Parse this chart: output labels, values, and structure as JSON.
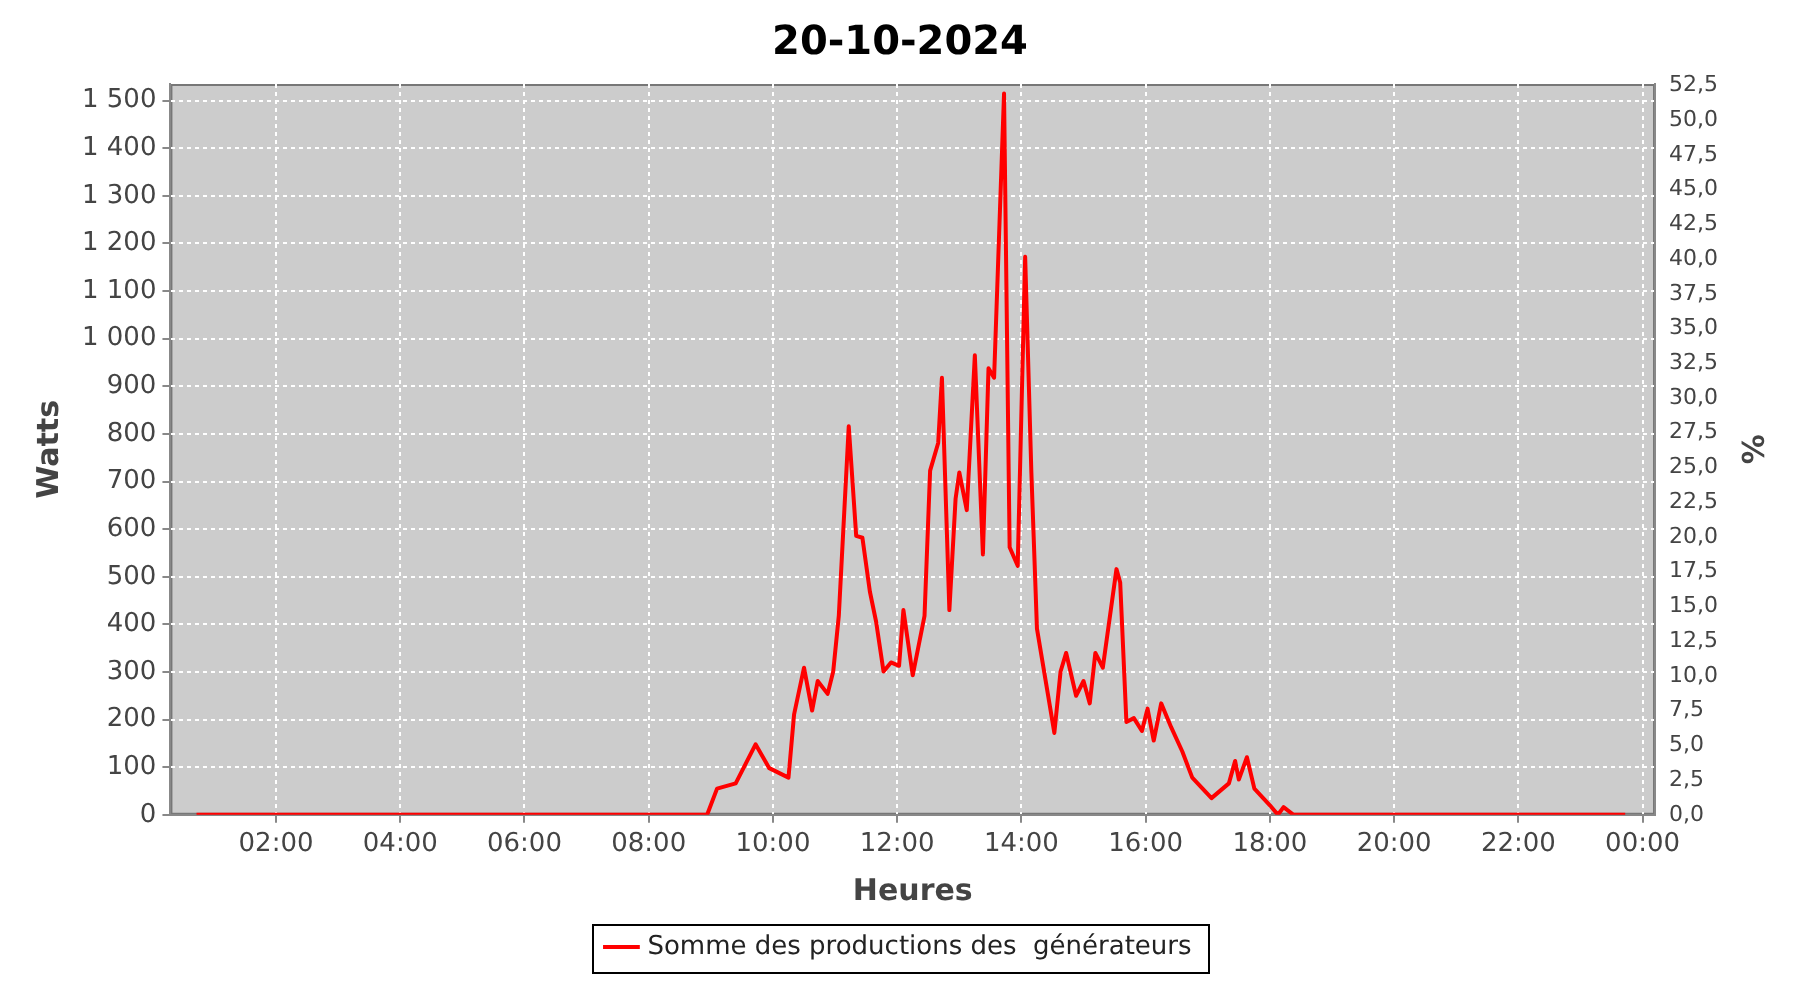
{
  "chart_data": {
    "type": "line",
    "title": "20-10-2024",
    "xlabel": "Heures",
    "ylabel": "Watts",
    "y2label": "%",
    "xlim": [
      0.3,
      24.2
    ],
    "ylim": [
      0,
      1535
    ],
    "y2lim": [
      0,
      52.6
    ],
    "xticks": [
      {
        "value": 2,
        "label": "02:00"
      },
      {
        "value": 4,
        "label": "04:00"
      },
      {
        "value": 6,
        "label": "06:00"
      },
      {
        "value": 8,
        "label": "08:00"
      },
      {
        "value": 10,
        "label": "10:00"
      },
      {
        "value": 12,
        "label": "12:00"
      },
      {
        "value": 14,
        "label": "14:00"
      },
      {
        "value": 16,
        "label": "16:00"
      },
      {
        "value": 18,
        "label": "18:00"
      },
      {
        "value": 20,
        "label": "20:00"
      },
      {
        "value": 22,
        "label": "22:00"
      },
      {
        "value": 24,
        "label": "00:00"
      }
    ],
    "yticks": [
      0,
      100,
      200,
      300,
      400,
      500,
      600,
      700,
      800,
      900,
      {
        "value": 1000,
        "label": "1 000"
      },
      {
        "value": 1100,
        "label": "1 100"
      },
      {
        "value": 1200,
        "label": "1 200"
      },
      {
        "value": 1300,
        "label": "1 300"
      },
      {
        "value": 1400,
        "label": "1 400"
      },
      {
        "value": 1500,
        "label": "1 500"
      }
    ],
    "y2ticks": [
      {
        "value": 0,
        "label": "0,0"
      },
      {
        "value": 2.5,
        "label": "2,5"
      },
      {
        "value": 5,
        "label": "5,0"
      },
      {
        "value": 7.5,
        "label": "7,5"
      },
      {
        "value": 10,
        "label": "10,0"
      },
      {
        "value": 12.5,
        "label": "12,5"
      },
      {
        "value": 15,
        "label": "15,0"
      },
      {
        "value": 17.5,
        "label": "17,5"
      },
      {
        "value": 20,
        "label": "20,0"
      },
      {
        "value": 22.5,
        "label": "22,5"
      },
      {
        "value": 25,
        "label": "25,0"
      },
      {
        "value": 27.5,
        "label": "27,5"
      },
      {
        "value": 30,
        "label": "30,0"
      },
      {
        "value": 32.5,
        "label": "32,5"
      },
      {
        "value": 35,
        "label": "35,0"
      },
      {
        "value": 37.5,
        "label": "37,5"
      },
      {
        "value": 40,
        "label": "40,0"
      },
      {
        "value": 42.5,
        "label": "42,5"
      },
      {
        "value": 45,
        "label": "45,0"
      },
      {
        "value": 47.5,
        "label": "47,5"
      },
      {
        "value": 50,
        "label": "50,0"
      },
      {
        "value": 52.5,
        "label": "52,5"
      }
    ],
    "grid": true,
    "legend": "bottom",
    "marker": "none",
    "line_style": "solid",
    "series": [
      {
        "name": "Somme des productions des  générateurs",
        "color": "#ff0000",
        "x": [
          0.72,
          4,
          8,
          8.94,
          9.1,
          9.4,
          9.72,
          9.94,
          10.25,
          10.34,
          10.5,
          10.63,
          10.72,
          10.88,
          10.97,
          11.06,
          11.22,
          11.34,
          11.44,
          11.56,
          11.66,
          11.78,
          11.9,
          12.03,
          12.1,
          12.25,
          12.44,
          12.53,
          12.66,
          12.72,
          12.84,
          12.94,
          13.0,
          13.12,
          13.25,
          13.38,
          13.47,
          13.56,
          13.72,
          13.81,
          13.94,
          14.06,
          14.16,
          14.25,
          14.53,
          14.63,
          14.72,
          14.88,
          15.0,
          15.1,
          15.19,
          15.31,
          15.53,
          15.59,
          15.69,
          15.81,
          15.94,
          16.03,
          16.13,
          16.25,
          16.41,
          16.59,
          16.75,
          17.06,
          17.34,
          17.44,
          17.5,
          17.63,
          17.75,
          18.0,
          18.13,
          18.22,
          18.38,
          21,
          23.72
        ],
        "values": [
          0,
          0,
          0,
          0,
          55,
          66,
          148,
          98,
          78,
          211,
          309,
          219,
          281,
          254,
          301,
          418,
          816,
          586,
          582,
          469,
          406,
          301,
          320,
          313,
          430,
          293,
          418,
          723,
          781,
          918,
          430,
          664,
          719,
          640,
          965,
          547,
          938,
          918,
          1515,
          562,
          523,
          1172,
          719,
          391,
          172,
          301,
          340,
          250,
          281,
          234,
          340,
          309,
          516,
          488,
          195,
          203,
          176,
          223,
          156,
          234,
          184,
          133,
          78,
          35,
          66,
          113,
          74,
          121,
          55,
          20,
          0,
          16,
          0,
          0,
          0
        ]
      }
    ]
  }
}
